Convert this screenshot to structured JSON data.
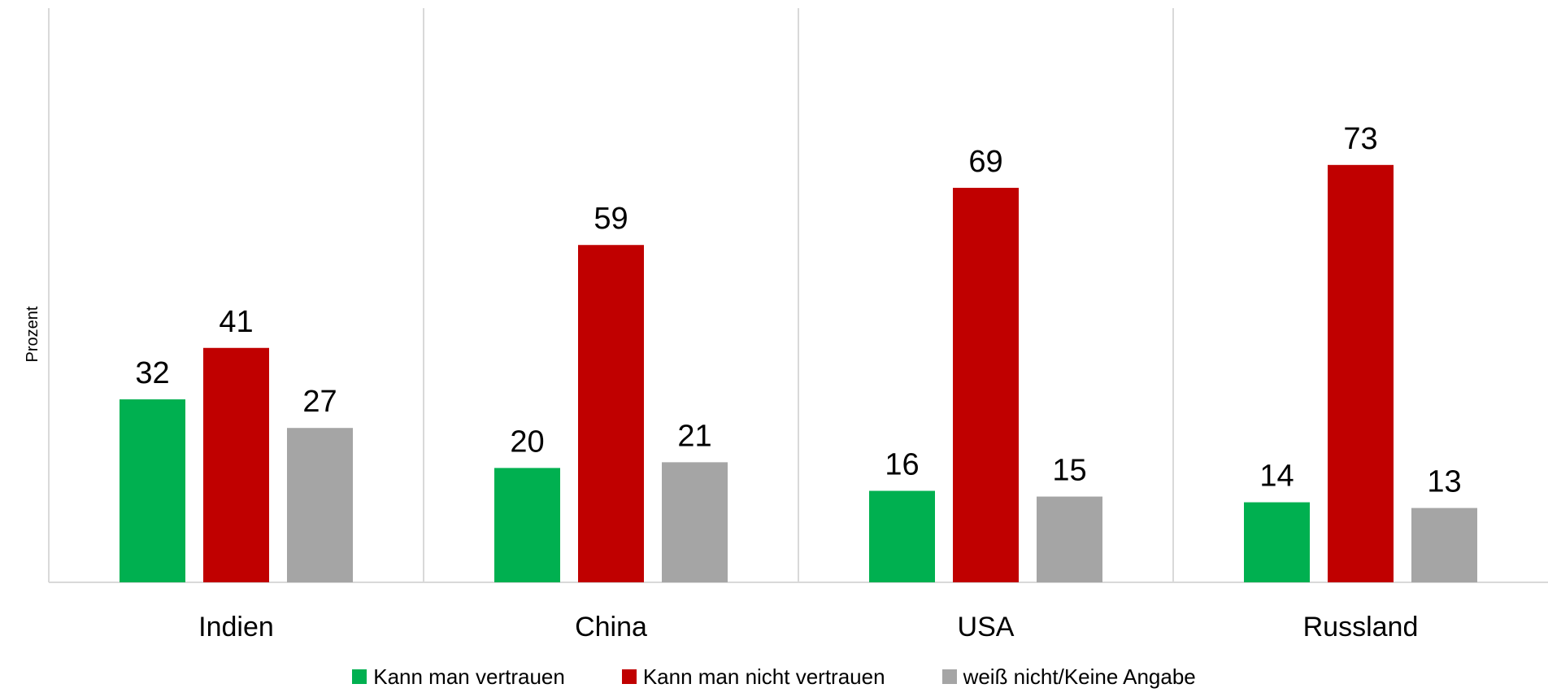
{
  "chart_data": {
    "type": "bar",
    "categories": [
      "Indien",
      "China",
      "USA",
      "Russland"
    ],
    "series": [
      {
        "name": "Kann man vertrauen",
        "values": [
          32,
          20,
          16,
          14
        ],
        "color": "#00B050"
      },
      {
        "name": "Kann man nicht vertrauen",
        "values": [
          41,
          59,
          69,
          73
        ],
        "color": "#C00000"
      },
      {
        "name": "weiß nicht/Keine Angabe",
        "values": [
          27,
          21,
          15,
          13
        ],
        "color": "#A5A5A5"
      }
    ],
    "ylabel": "Prozent",
    "xlabel": "",
    "ylim": [
      0,
      100
    ],
    "grid": "vertical separators between categories",
    "legend": "bottom"
  }
}
